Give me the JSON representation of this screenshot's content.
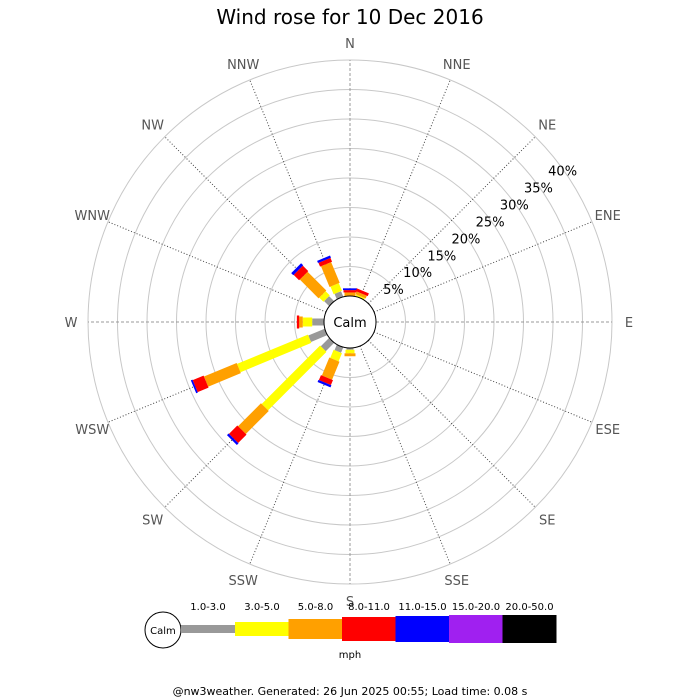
{
  "title": "Wind rose for 10 Dec 2016",
  "footer": "@nw3weather. Generated: 26 Jun 2025 00:55; Load time: 0.08 s",
  "calm_label": "Calm",
  "unit_label": "mph",
  "chart_data": {
    "type": "wind-rose",
    "title": "Wind rose for 10 Dec 2016",
    "directions": [
      "N",
      "NNE",
      "NE",
      "ENE",
      "E",
      "ESE",
      "SE",
      "SSE",
      "S",
      "SSW",
      "SW",
      "WSW",
      "W",
      "WNW",
      "NW",
      "NNW"
    ],
    "rings": [
      "5%",
      "10%",
      "15%",
      "20%",
      "25%",
      "30%",
      "35%",
      "40%"
    ],
    "rmax": 40,
    "speed_bins": [
      {
        "label": "1.0-3.0",
        "color": "#999999"
      },
      {
        "label": "3.0-5.0",
        "color": "#ffff00"
      },
      {
        "label": "5.0-8.0",
        "color": "#ffa000"
      },
      {
        "label": "8.0-11.0",
        "color": "#ff0000"
      },
      {
        "label": "11.0-15.0",
        "color": "#0000ff"
      },
      {
        "label": "15.0-20.0",
        "color": "#a020f0"
      },
      {
        "label": "20.0-50.0",
        "color": "#000000"
      }
    ],
    "values": {
      "N": [
        0,
        0,
        0.6,
        0.4,
        0.3,
        0,
        0
      ],
      "NNE": [
        0,
        0.3,
        0.5,
        0.5,
        0,
        0,
        0
      ],
      "NE": [
        0,
        0,
        0,
        0,
        0,
        0,
        0
      ],
      "ENE": [
        0,
        0,
        0,
        0,
        0,
        0,
        0
      ],
      "E": [
        0,
        0,
        0,
        0,
        0,
        0,
        0
      ],
      "ESE": [
        0,
        0,
        0,
        0,
        0,
        0,
        0
      ],
      "SE": [
        0,
        0,
        0,
        0,
        0,
        0,
        0
      ],
      "SSE": [
        0,
        0,
        0,
        0,
        0,
        0,
        0
      ],
      "S": [
        0.3,
        0.6,
        0.5,
        0,
        0,
        0,
        0
      ],
      "SSW": [
        1.0,
        1.5,
        3.3,
        0.9,
        0.4,
        0,
        0
      ],
      "SW": [
        2.0,
        14.0,
        5.5,
        2.0,
        0.4,
        0,
        0
      ],
      "WSW": [
        3.0,
        13.0,
        6.0,
        2.0,
        0.3,
        0,
        0
      ],
      "W": [
        2.0,
        1.6,
        0.6,
        0.4,
        0,
        0,
        0
      ],
      "WNW": [
        0,
        0,
        0,
        0,
        0,
        0,
        0
      ],
      "NW": [
        1.2,
        1.0,
        4.5,
        1.3,
        0.5,
        0,
        0
      ],
      "NNW": [
        1.0,
        1.4,
        3.8,
        0.7,
        0.4,
        0,
        0
      ]
    }
  }
}
